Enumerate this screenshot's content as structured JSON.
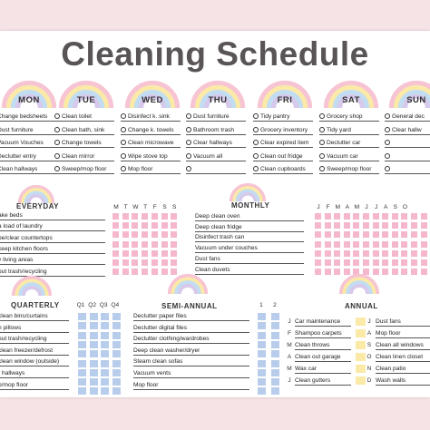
{
  "title": "Cleaning Schedule",
  "days": [
    {
      "name": "MON",
      "tasks": [
        "Change bedsheets",
        "Dust furniture",
        "Vacuum Vouches",
        "Declutter entry",
        "Clean hallways"
      ]
    },
    {
      "name": "TUE",
      "tasks": [
        "Clean toilet",
        "Clean bath, sink",
        "Change towels",
        "Clean mirror",
        "Sweep/mop floor"
      ]
    },
    {
      "name": "WED",
      "tasks": [
        "Disinfect k. sink",
        "Change k. towels",
        "Clean microwave",
        "Wipe stove top",
        "Mop floor"
      ]
    },
    {
      "name": "THU",
      "tasks": [
        "Dust furniture",
        "Bathroom trash",
        "Clear hallways",
        "Vacuum all",
        ""
      ]
    },
    {
      "name": "FRI",
      "tasks": [
        "Tidy pantry",
        "Grocery inventory",
        "Clear expired item",
        "Clean out fridge",
        "Clean cupboards"
      ]
    },
    {
      "name": "SAT",
      "tasks": [
        "Grocery shop",
        "Tidy yard",
        "Declutter car",
        "Vacuum car",
        "Sweep/mop floor"
      ]
    },
    {
      "name": "SUN",
      "tasks": [
        "General dec",
        "Clear hallw",
        "",
        "",
        ""
      ]
    }
  ],
  "everyday": {
    "title": "EVERYDAY",
    "days_header": [
      "M",
      "T",
      "W",
      "T",
      "F",
      "S",
      "S"
    ],
    "tasks": [
      "ake beds",
      "a load of laundry",
      "pe/clear countertops",
      "keep kitchen floors",
      "y living areas",
      "out trash/recycling"
    ]
  },
  "monthly": {
    "title": "MONTHLY",
    "months_header": [
      "J",
      "F",
      "M",
      "A",
      "M",
      "J",
      "J",
      "A",
      "S",
      "O"
    ],
    "tasks": [
      "Deep clean oven",
      "Deep clean fridge",
      "Disinfect trash can",
      "Vacuum under couches",
      "Dust fans",
      "Clean duvets"
    ]
  },
  "quarterly": {
    "title": "QUARTERLY",
    "q_header": [
      "Q1",
      "Q2",
      "Q3",
      "Q4"
    ],
    "tasks": [
      "clean bins/curtains",
      "h pillows",
      "out trash/recycling",
      "clean freezer/defrost",
      "clean window (outside)",
      "r hallways",
      "p/mop floor"
    ]
  },
  "semi": {
    "title": "SEMI-ANNUAL",
    "header": [
      "1",
      "2"
    ],
    "tasks": [
      "Declutter paper files",
      "Declutter digital files",
      "Declutter clothing/wardrobes",
      "Deep clean washer/dryer",
      "Steam clean sofas",
      "Vacuum vents",
      "Mop floor"
    ]
  },
  "annual": {
    "title": "ANNUAL",
    "left": [
      {
        "m": "J",
        "t": "Car maintenance"
      },
      {
        "m": "F",
        "t": "Shampoo carpets"
      },
      {
        "m": "M",
        "t": "Clean throws"
      },
      {
        "m": "A",
        "t": "Clean out garage"
      },
      {
        "m": "M",
        "t": "Wax car"
      },
      {
        "m": "J",
        "t": "Clean gutters"
      }
    ],
    "right": [
      {
        "m": "J",
        "t": "Dust fans"
      },
      {
        "m": "A",
        "t": "Mop floor"
      },
      {
        "m": "S",
        "t": "Clean all windows"
      },
      {
        "m": "O",
        "t": "Clean linen closet"
      },
      {
        "m": "N",
        "t": "Clean patio"
      },
      {
        "m": "D",
        "t": "Wash walls"
      }
    ]
  }
}
